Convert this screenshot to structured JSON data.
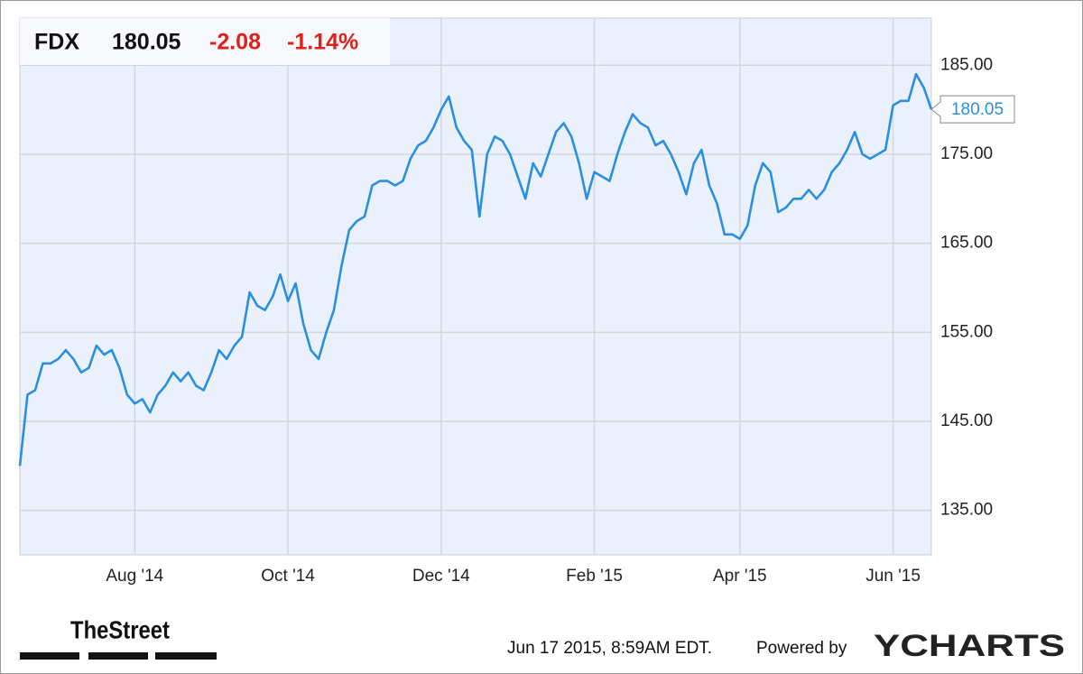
{
  "chart_data": {
    "type": "line",
    "change": -2.08,
    "change_percent": "-1.14%",
    "categories": [
      null,
      null,
      null,
      null,
      null,
      null,
      null,
      null,
      null,
      null,
      null,
      null,
      null,
      null,
      null,
      "Aug '14",
      null,
      null,
      null,
      null,
      null,
      null,
      null,
      null,
      null,
      null,
      null,
      null,
      null,
      null,
      null,
      null,
      null,
      null,
      null,
      "Oct '14",
      null,
      null,
      null,
      null,
      null,
      null,
      null,
      null,
      null,
      null,
      null,
      null,
      null,
      null,
      null,
      null,
      null,
      null,
      null,
      "Dec '14",
      null,
      null,
      null,
      null,
      null,
      null,
      null,
      null,
      null,
      null,
      null,
      null,
      null,
      null,
      null,
      null,
      null,
      null,
      null,
      "Feb '15",
      null,
      null,
      null,
      null,
      null,
      null,
      null,
      null,
      null,
      null,
      null,
      null,
      null,
      null,
      null,
      null,
      null,
      null,
      "Apr '15",
      null,
      null,
      null,
      null,
      null,
      null,
      null,
      null,
      null,
      null,
      null,
      null,
      null,
      null,
      null,
      null,
      null,
      null,
      null,
      "Jun '15",
      null,
      null,
      null,
      null,
      null
    ],
    "series": [
      {
        "name": "FDX",
        "color": "#2b8fe0",
        "values": [
          140,
          148,
          148.5,
          151.5,
          151.5,
          152,
          153,
          152,
          150.5,
          151,
          153.5,
          152.5,
          153,
          151,
          148,
          147,
          147.5,
          146,
          148,
          149,
          150.5,
          149.5,
          150.5,
          149,
          148.5,
          150.5,
          153,
          152,
          153.5,
          154.5,
          159.5,
          158,
          157.5,
          159,
          161.5,
          158.5,
          160.5,
          156,
          153,
          152,
          155,
          157.5,
          162.5,
          166.5,
          167.5,
          168,
          171.5,
          172,
          172,
          171.5,
          172,
          174.5,
          176,
          176.5,
          178,
          180,
          181.5,
          178,
          176.5,
          175.5,
          168,
          175,
          177,
          176.5,
          175,
          172.5,
          170,
          174,
          172.5,
          175,
          177.5,
          178.5,
          177,
          174,
          170,
          173,
          172.5,
          172,
          175,
          177.5,
          179.5,
          178.5,
          178,
          176,
          176.5,
          175,
          173,
          170.5,
          174,
          175.5,
          171.5,
          169.5,
          166,
          166,
          165.5,
          167,
          171.5,
          174,
          173,
          168.5,
          169,
          170,
          170,
          171,
          170,
          171,
          173,
          174,
          175.5,
          177.5,
          175,
          174.5,
          175,
          175.5,
          180.5,
          181,
          181,
          184,
          182.5,
          180.05
        ]
      }
    ],
    "ylim": [
      130,
      190.3
    ],
    "yticks": [
      {
        "value": 135,
        "label": "135.00"
      },
      {
        "value": 145,
        "label": "145.00"
      },
      {
        "value": 155,
        "label": "155.00"
      },
      {
        "value": 165,
        "label": "165.00"
      },
      {
        "value": 175,
        "label": "175.00"
      },
      {
        "value": 185,
        "label": "185.00"
      }
    ],
    "grid": true,
    "footer": {
      "logo": "TheStreet",
      "timestamp": "Jun 17 2015, 8:59AM EDT.",
      "powered_by": "Powered by",
      "brand": "YCHARTS"
    }
  }
}
